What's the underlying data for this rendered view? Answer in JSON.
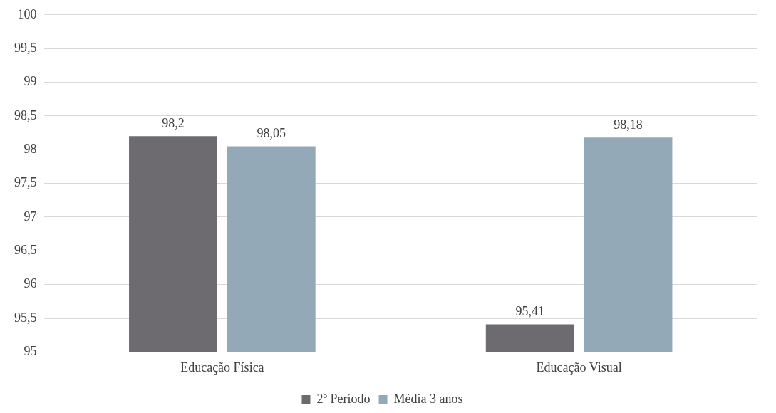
{
  "chart_data": {
    "type": "bar",
    "categories": [
      "Educação Física",
      "Educação Visual"
    ],
    "series": [
      {
        "name": "2º Período",
        "color": "#6d6b70",
        "values": [
          98.2,
          95.41
        ],
        "value_labels": [
          "98,2",
          "95,41"
        ]
      },
      {
        "name": "Média 3 anos",
        "color": "#93a9b8",
        "values": [
          98.05,
          98.18
        ],
        "value_labels": [
          "98,05",
          "98,18"
        ]
      }
    ],
    "ylim": [
      95,
      100
    ],
    "yticks": [
      95,
      {
        "value": 95.5,
        "label": "95,5"
      },
      96,
      {
        "value": 96.5,
        "label": "96,5"
      },
      97,
      {
        "value": 97.5,
        "label": "97,5"
      },
      98,
      {
        "value": 98.5,
        "label": "98,5"
      },
      99,
      {
        "value": 99.5,
        "label": "99,5"
      },
      100
    ],
    "grid": "y",
    "legend": "bottom"
  }
}
